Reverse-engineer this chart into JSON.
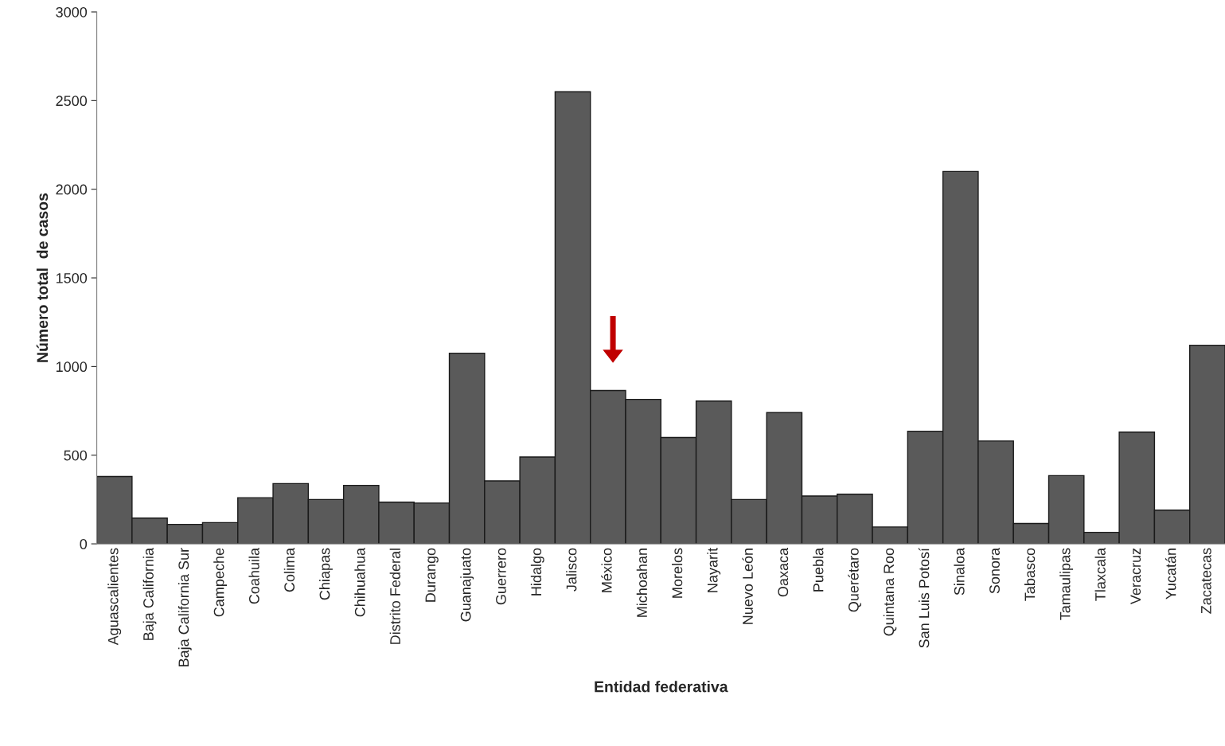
{
  "chart_data": {
    "type": "bar",
    "xlabel": "Entidad federativa",
    "ylabel": "Número total  de casos",
    "categories": [
      "Aguascalientes",
      "Baja California",
      "Baja California Sur",
      "Campeche",
      "Coahuila",
      "Colima",
      "Chiapas",
      "Chihuahua",
      "Distrito Federal",
      "Durango",
      "Guanajuato",
      "Guerrero",
      "Hidalgo",
      "Jalisco",
      "México",
      "Michoahan",
      "Morelos",
      "Nayarit",
      "Nuevo León",
      "Oaxaca",
      "Puebla",
      "Querétaro",
      "Quintana Roo",
      "San Luis Potosí",
      "Sinaloa",
      "Sonora",
      "Tabasco",
      "Tamaulipas",
      "Tlaxcala",
      "Veracruz",
      "Yucatán",
      "Zacatecas"
    ],
    "values": [
      380,
      145,
      110,
      120,
      260,
      340,
      250,
      330,
      235,
      230,
      1075,
      355,
      490,
      2550,
      865,
      815,
      600,
      805,
      250,
      740,
      270,
      280,
      95,
      635,
      2100,
      580,
      115,
      385,
      65,
      630,
      190,
      1120
    ],
    "color": "#5a5a5a",
    "ylim": [
      0,
      3000
    ],
    "yticks": [
      0,
      500,
      1000,
      1500,
      2000,
      2500,
      3000
    ],
    "grid": false,
    "legend": false
  }
}
